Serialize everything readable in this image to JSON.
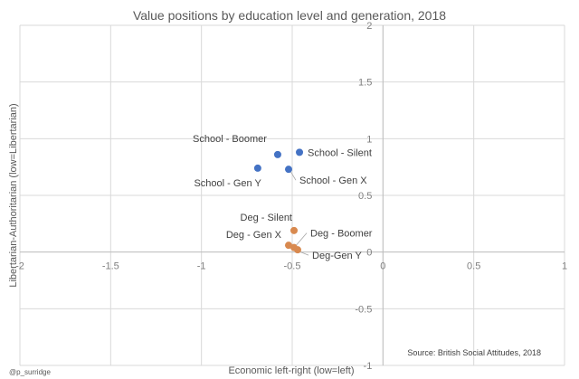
{
  "chart_data": {
    "type": "scatter",
    "title": "Value positions by education level and generation, 2018",
    "xlabel": "Economic left-right (low=left)",
    "ylabel": "Libertarian-Authoritarian (low=Libertarian)",
    "xlim": [
      -2,
      1
    ],
    "ylim": [
      -1,
      2
    ],
    "x_ticks": [
      "-2",
      "-1.5",
      "-1",
      "-0.5",
      "0",
      "0.5",
      "1"
    ],
    "y_ticks": [
      "-1",
      "-0.5",
      "0",
      "0.5",
      "1",
      "1.5",
      "2"
    ],
    "grid": true,
    "series": [
      {
        "color": "#4472c4",
        "points": [
          {
            "label": "School - Boomer",
            "x": -0.58,
            "y": 0.86
          },
          {
            "label": "School - Silent",
            "x": -0.46,
            "y": 0.88
          },
          {
            "label": "School - Gen Y",
            "x": -0.69,
            "y": 0.74
          },
          {
            "label": "School - Gen X",
            "x": -0.52,
            "y": 0.73
          }
        ]
      },
      {
        "color": "#d8894f",
        "points": [
          {
            "label": "Deg - Silent",
            "x": -0.49,
            "y": 0.19
          },
          {
            "label": "Deg - Boomer",
            "x": -0.49,
            "y": 0.04
          },
          {
            "label": "Deg - Gen X",
            "x": -0.52,
            "y": 0.06
          },
          {
            "label": "Deg-Gen Y",
            "x": -0.47,
            "y": 0.02
          }
        ]
      }
    ],
    "source": "Source: British Social Attitudes, 2018",
    "credit": "@p_surridge"
  }
}
